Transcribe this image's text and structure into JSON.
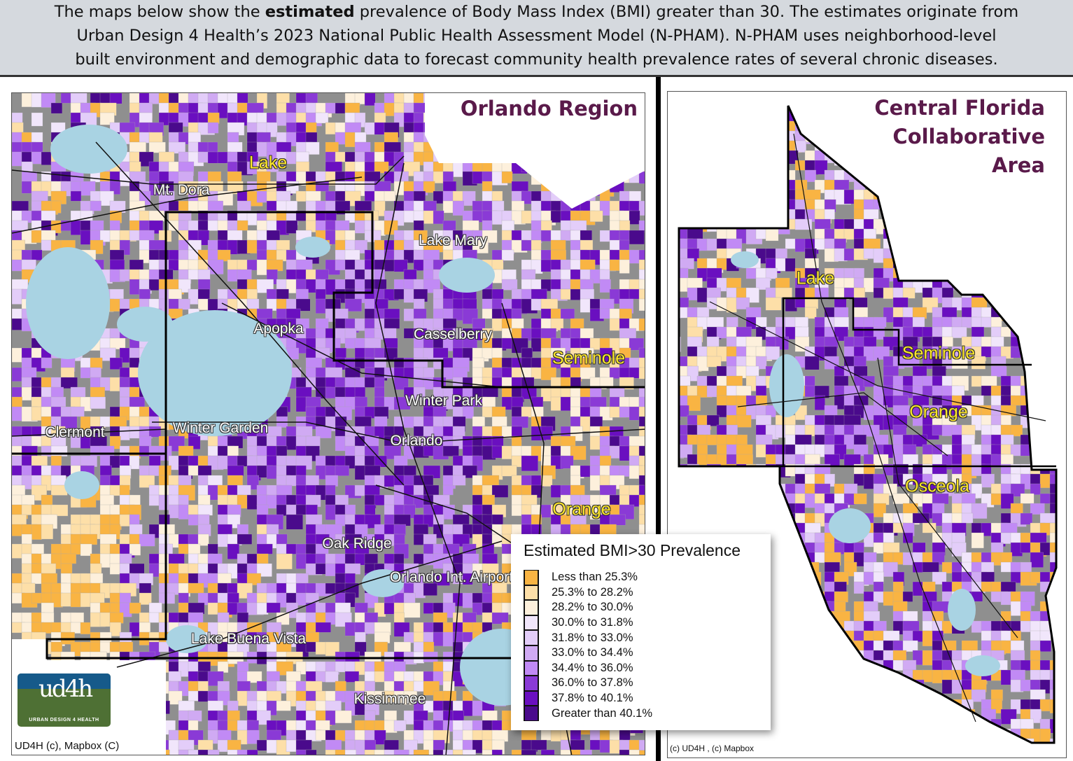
{
  "header": {
    "line1_pre": "The maps below show the ",
    "line1_bold": "estimated",
    "line1_post": " prevalence of Body Mass Index (BMI) greater than 30. The estimates originate  from",
    "line2": "Urban Design 4 Health’s 2023 National Public Health Assessment Model (N-PHAM). N-PHAM uses neighborhood-level",
    "line3": "built environment and demographic data to forecast community health prevalence rates of several chronic diseases."
  },
  "left_map": {
    "title": "Orlando Region",
    "credit": "UD4H (c), Mapbox (C)",
    "logo_text": "ud4h",
    "logo_subtitle": "URBAN DESIGN 4 HEALTH",
    "counties": [
      "Lake",
      "Seminole",
      "Orange"
    ],
    "places": [
      "Mt. Dora",
      "Lake Mary",
      "Apopka",
      "Casselberry",
      "Winter Park",
      "Winter Garden",
      "Clermont",
      "Orlando",
      "Oak Ridge",
      "Orlando Int. Airport",
      "Lake Buena Vista",
      "Kissimmee"
    ]
  },
  "right_map": {
    "title_lines": [
      "Central Florida",
      "Collaborative",
      "Area"
    ],
    "credit": "(c) UD4H , (c) Mapbox",
    "counties": [
      "Lake",
      "Seminole",
      "Orange",
      "Osceola"
    ]
  },
  "legend": {
    "title": "Estimated BMI>30 Prevalence",
    "items": [
      {
        "label": "Less than 25.3%",
        "color": "#f9b443"
      },
      {
        "label": "25.3% to 28.2%",
        "color": "#fddfa8"
      },
      {
        "label": "28.2% to 30.0%",
        "color": "#fdf0dc"
      },
      {
        "label": "30.0% to 31.8%",
        "color": "#f1e6fb"
      },
      {
        "label": "31.8% to 33.0%",
        "color": "#e3cdf9"
      },
      {
        "label": "33.0% to 34.4%",
        "color": "#d0aaf3"
      },
      {
        "label": "34.4% to 36.0%",
        "color": "#c18af5"
      },
      {
        "label": "36.0% to 37.8%",
        "color": "#8a3ad6"
      },
      {
        "label": "37.8% to 40.1%",
        "color": "#6a0fc0"
      },
      {
        "label": "Greater than 40.1%",
        "color": "#4a0a8c"
      }
    ]
  },
  "colors": {
    "nodata": "#8f8f8f",
    "water": "#a9d3e3"
  }
}
